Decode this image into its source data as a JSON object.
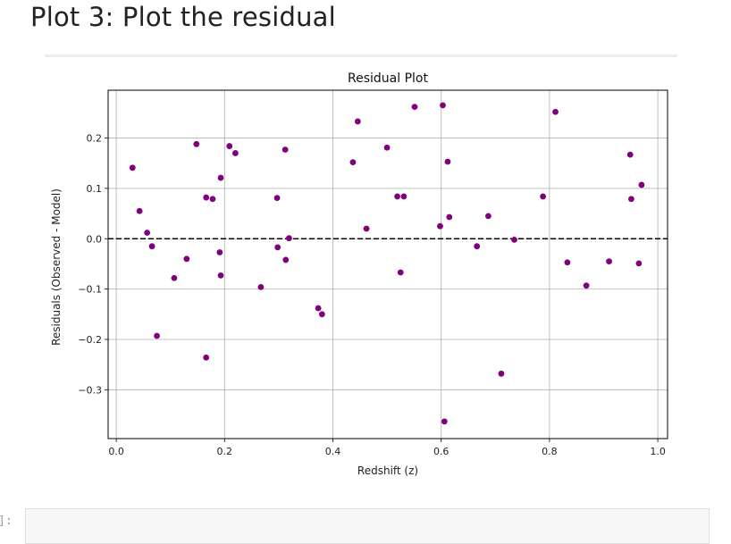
{
  "notebook": {
    "heading": "Plot 3: Plot the residual",
    "prompt": "]:"
  },
  "chart_data": {
    "type": "scatter",
    "title": "Residual Plot",
    "xlabel": "Redshift (z)",
    "ylabel": "Residuals (Observed - Model)",
    "xlim": [
      -0.015,
      1.018
    ],
    "ylim": [
      -0.397,
      0.295
    ],
    "xticks": [
      0.0,
      0.2,
      0.4,
      0.6,
      0.8,
      1.0
    ],
    "xtick_labels": [
      "0.0",
      "0.2",
      "0.4",
      "0.6",
      "0.8",
      "1.0"
    ],
    "yticks": [
      -0.3,
      -0.2,
      -0.1,
      0.0,
      0.1,
      0.2
    ],
    "ytick_labels": [
      "−0.3",
      "−0.2",
      "−0.1",
      "0.0",
      "0.1",
      "0.2"
    ],
    "grid": true,
    "point_color": "#800080",
    "zero_line": {
      "y": 0.0,
      "style": "dashed",
      "color": "#000000"
    },
    "points": [
      {
        "x": 0.03,
        "y": 0.141
      },
      {
        "x": 0.043,
        "y": 0.055
      },
      {
        "x": 0.057,
        "y": 0.012
      },
      {
        "x": 0.066,
        "y": -0.015
      },
      {
        "x": 0.075,
        "y": -0.193
      },
      {
        "x": 0.107,
        "y": -0.078
      },
      {
        "x": 0.13,
        "y": -0.04
      },
      {
        "x": 0.148,
        "y": 0.188
      },
      {
        "x": 0.166,
        "y": 0.082
      },
      {
        "x": 0.166,
        "y": -0.236
      },
      {
        "x": 0.178,
        "y": 0.079
      },
      {
        "x": 0.191,
        "y": -0.027
      },
      {
        "x": 0.193,
        "y": 0.121
      },
      {
        "x": 0.193,
        "y": -0.073
      },
      {
        "x": 0.209,
        "y": 0.184
      },
      {
        "x": 0.22,
        "y": 0.17
      },
      {
        "x": 0.267,
        "y": -0.096
      },
      {
        "x": 0.297,
        "y": 0.081
      },
      {
        "x": 0.298,
        "y": -0.017
      },
      {
        "x": 0.312,
        "y": 0.177
      },
      {
        "x": 0.313,
        "y": -0.042
      },
      {
        "x": 0.319,
        "y": 0.001
      },
      {
        "x": 0.373,
        "y": -0.138
      },
      {
        "x": 0.38,
        "y": -0.15
      },
      {
        "x": 0.437,
        "y": 0.152
      },
      {
        "x": 0.446,
        "y": 0.233
      },
      {
        "x": 0.462,
        "y": 0.02
      },
      {
        "x": 0.5,
        "y": 0.181
      },
      {
        "x": 0.519,
        "y": 0.084
      },
      {
        "x": 0.525,
        "y": -0.067
      },
      {
        "x": 0.531,
        "y": 0.084
      },
      {
        "x": 0.551,
        "y": 0.262
      },
      {
        "x": 0.598,
        "y": 0.025
      },
      {
        "x": 0.603,
        "y": 0.265
      },
      {
        "x": 0.606,
        "y": -0.363
      },
      {
        "x": 0.612,
        "y": 0.153
      },
      {
        "x": 0.615,
        "y": 0.043
      },
      {
        "x": 0.666,
        "y": -0.015
      },
      {
        "x": 0.687,
        "y": 0.045
      },
      {
        "x": 0.711,
        "y": -0.268
      },
      {
        "x": 0.735,
        "y": -0.002
      },
      {
        "x": 0.788,
        "y": 0.084
      },
      {
        "x": 0.811,
        "y": 0.252
      },
      {
        "x": 0.833,
        "y": -0.047
      },
      {
        "x": 0.868,
        "y": -0.093
      },
      {
        "x": 0.91,
        "y": -0.045
      },
      {
        "x": 0.949,
        "y": 0.167
      },
      {
        "x": 0.951,
        "y": 0.079
      },
      {
        "x": 0.965,
        "y": -0.049
      },
      {
        "x": 0.97,
        "y": 0.107
      }
    ]
  }
}
